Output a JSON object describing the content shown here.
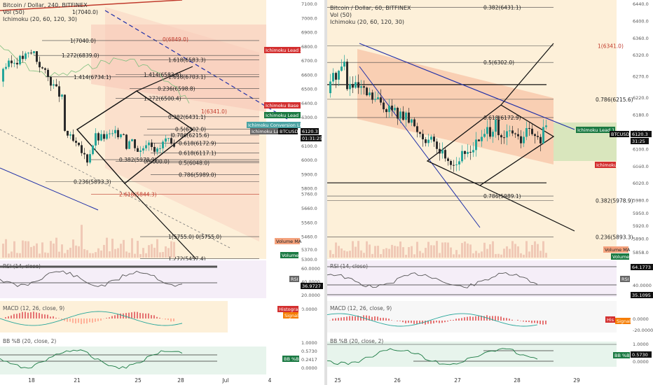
{
  "left": {
    "header": [
      "Bitcoin / Dollar, 240, BITFINEX",
      "Vol (50)",
      "Ichimoku (20, 60, 120, 30)"
    ],
    "price_axis": [
      "7100.0",
      "7000.0",
      "6900.0",
      "6800.0",
      "6700.0",
      "6600.0",
      "6500.0",
      "6400.0",
      "6300.0",
      "6200.0",
      "6100.0",
      "6000.0",
      "5900.0",
      "5800.0",
      "5760.0",
      "5660.0",
      "5560.0",
      "5460.0",
      "5370.0",
      "5300.0"
    ],
    "time_axis": [
      "18",
      "21",
      "25",
      "28",
      "Jul",
      "4"
    ],
    "fib_labels": [
      "1(7040.0)",
      "1.272(6839.0)",
      "1.414(6734.1)",
      "1.618(6583.3)",
      "1.618(6703.1)",
      "1.414(6583.6)",
      "0.236(6598.8)",
      "1.272(6500.4)",
      "0.382(6431.1)",
      "0.5(6302.0)",
      "0.786(6215.6)",
      "0.618(6172.9)",
      "0.618(6117.1)",
      "0.5(6048.0)",
      "0.382(5978.9)",
      "0(6000.0)",
      "0.786(5989.0)",
      "0.236(5893.3)",
      "2.618(5844.3)",
      "1(5755.0) 0(5755.0)",
      "1.272(5457.4)",
      "1.414(5302.1)"
    ],
    "red_labels": [
      "0(6849.0)",
      "1(6341.0)"
    ],
    "tags": [
      "Ichimoku Lead 2",
      "Ichimoku Base Line",
      "Ichimoku Lead 1",
      "Ichimoku Conversion Line",
      "Ichimoku Lag",
      "BTCUSD",
      "6120.3",
      "01:31:25",
      "Volume MA",
      "Volume"
    ],
    "rsi": {
      "title": "RSI (14, close)",
      "axis": [
        "60.0000",
        "40.0000",
        "20.0000"
      ],
      "tag": "RSI",
      "value": "36.9727"
    },
    "macd": {
      "title": "MACD (12, 26, close, 9)",
      "axis": [
        "0.0000"
      ],
      "tags": [
        "Histogram",
        "MACD",
        "Signal"
      ]
    },
    "bb": {
      "title": "BB %B (20, close, 2)",
      "axis": [
        "1.0000",
        "0.5730",
        "0.2417",
        "0.0000"
      ],
      "tag": "BB %B"
    }
  },
  "right": {
    "header": [
      "Bitcoin / Dollar, 60, BITFINEX",
      "Vol (50)",
      "Ichimoku (20, 60, 120, 30)"
    ],
    "price_axis": [
      "6440.0",
      "6400.0",
      "6360.0",
      "6320.0",
      "6270.0",
      "6220.0",
      "6180.0",
      "6140.0",
      "6100.0",
      "6060.0",
      "6020.0",
      "5980.0",
      "5950.0",
      "5920.0",
      "5890.0",
      "5858.0"
    ],
    "time_axis": [
      "25",
      "26",
      "27",
      "28",
      "29"
    ],
    "fib_labels": [
      "0.382(6431.1)",
      "1(6341.0)",
      "0.5(6302.0)",
      "0.786(6215.6)",
      "0.618(6172.9)",
      "0.786(5989.1)",
      "0.382(5978.9)",
      "0.236(5893.3)"
    ],
    "tags": [
      "Ichimoku Lead 1",
      "Ichimoku Base Line",
      "BTCUSD",
      "6120.3",
      "31:25",
      "Volume MA",
      "Volume"
    ],
    "rsi": {
      "title": "RSI (14, close)",
      "axis": [
        "64.1773",
        "40.0000",
        "35.1095"
      ],
      "tag": "RSI"
    },
    "macd": {
      "title": "MACD (12, 26, close, 9)",
      "axis": [
        "0.0000",
        "-20.0000"
      ],
      "tags": [
        "His",
        "Signal"
      ]
    },
    "bb": {
      "title": "BB %B (20, close, 2)",
      "axis": [
        "1.0000",
        "0.5730",
        "0.0000"
      ],
      "tag": "BB %B"
    }
  },
  "chart_data": [
    {
      "type": "line",
      "title": "Bitcoin / Dollar, 240, BITFINEX",
      "xlabel": "",
      "ylabel": "",
      "x": [
        "18",
        "21",
        "25",
        "28"
      ],
      "series": [
        {
          "name": "BTCUSD",
          "values": [
            6700,
            6500,
            6050,
            6120
          ]
        }
      ],
      "ylim": [
        5300,
        7100
      ]
    },
    {
      "type": "line",
      "title": "Bitcoin / Dollar, 60, BITFINEX",
      "xlabel": "",
      "ylabel": "",
      "x": [
        "25",
        "26",
        "27",
        "28"
      ],
      "series": [
        {
          "name": "BTCUSD",
          "values": [
            6270,
            6200,
            6060,
            6120
          ]
        }
      ],
      "ylim": [
        5858,
        6440
      ]
    }
  ]
}
